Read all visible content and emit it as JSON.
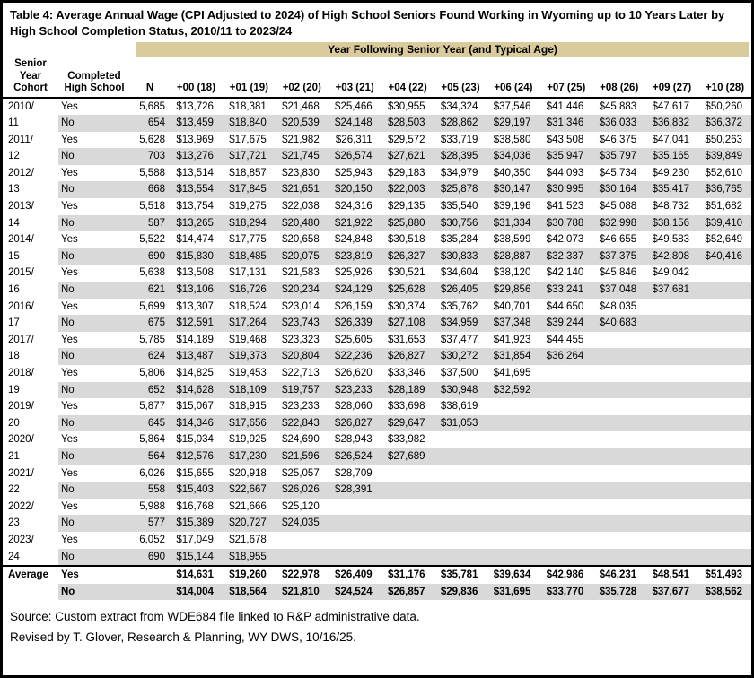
{
  "title": "Table 4: Average Annual Wage (CPI Adjusted to 2024) of High School Seniors Found Working in Wyoming up to 10 Years Later by High School Completion Status, 2010/11 to 2023/24",
  "span_header": "Year Following Senior Year (and Typical Age)",
  "columns": {
    "cohort": "Senior\nYear\nCohort",
    "completed": "Completed\nHigh School",
    "n": "N",
    "wage": [
      "+00 (18)",
      "+01 (19)",
      "+02 (20)",
      "+03 (21)",
      "+04 (22)",
      "+05 (23)",
      "+06 (24)",
      "+07 (25)",
      "+08 (26)",
      "+09 (27)",
      "+10 (28)"
    ]
  },
  "rows": [
    {
      "cohort": "2010/",
      "completed": "Yes",
      "n": "5,685",
      "wages": [
        "$13,726",
        "$18,381",
        "$21,468",
        "$25,466",
        "$30,955",
        "$34,324",
        "$37,546",
        "$41,446",
        "$45,883",
        "$47,617",
        "$50,260"
      ]
    },
    {
      "cohort": "11",
      "completed": "No",
      "n": "654",
      "wages": [
        "$13,459",
        "$18,840",
        "$20,539",
        "$24,148",
        "$28,503",
        "$28,862",
        "$29,197",
        "$31,346",
        "$36,033",
        "$36,832",
        "$36,372"
      ]
    },
    {
      "cohort": "2011/",
      "completed": "Yes",
      "n": "5,628",
      "wages": [
        "$13,969",
        "$17,675",
        "$21,982",
        "$26,311",
        "$29,572",
        "$33,719",
        "$38,580",
        "$43,508",
        "$46,375",
        "$47,041",
        "$50,263"
      ]
    },
    {
      "cohort": "12",
      "completed": "No",
      "n": "703",
      "wages": [
        "$13,276",
        "$17,721",
        "$21,745",
        "$26,574",
        "$27,621",
        "$28,395",
        "$34,036",
        "$35,947",
        "$35,797",
        "$35,165",
        "$39,849"
      ]
    },
    {
      "cohort": "2012/",
      "completed": "Yes",
      "n": "5,588",
      "wages": [
        "$13,514",
        "$18,857",
        "$23,830",
        "$25,943",
        "$29,183",
        "$34,979",
        "$40,350",
        "$44,093",
        "$45,734",
        "$49,230",
        "$52,610"
      ]
    },
    {
      "cohort": "13",
      "completed": "No",
      "n": "668",
      "wages": [
        "$13,554",
        "$17,845",
        "$21,651",
        "$20,150",
        "$22,003",
        "$25,878",
        "$30,147",
        "$30,995",
        "$30,164",
        "$35,417",
        "$36,765"
      ]
    },
    {
      "cohort": "2013/",
      "completed": "Yes",
      "n": "5,518",
      "wages": [
        "$13,754",
        "$19,275",
        "$22,038",
        "$24,316",
        "$29,135",
        "$35,540",
        "$39,196",
        "$41,523",
        "$45,088",
        "$48,732",
        "$51,682"
      ]
    },
    {
      "cohort": "14",
      "completed": "No",
      "n": "587",
      "wages": [
        "$13,265",
        "$18,294",
        "$20,480",
        "$21,922",
        "$25,880",
        "$30,756",
        "$31,334",
        "$30,788",
        "$32,998",
        "$38,156",
        "$39,410"
      ]
    },
    {
      "cohort": "2014/",
      "completed": "Yes",
      "n": "5,522",
      "wages": [
        "$14,474",
        "$17,775",
        "$20,658",
        "$24,848",
        "$30,518",
        "$35,284",
        "$38,599",
        "$42,073",
        "$46,655",
        "$49,583",
        "$52,649"
      ]
    },
    {
      "cohort": "15",
      "completed": "No",
      "n": "690",
      "wages": [
        "$15,830",
        "$18,485",
        "$20,075",
        "$23,819",
        "$26,327",
        "$30,833",
        "$28,887",
        "$32,337",
        "$37,375",
        "$42,808",
        "$40,416"
      ]
    },
    {
      "cohort": "2015/",
      "completed": "Yes",
      "n": "5,638",
      "wages": [
        "$13,508",
        "$17,131",
        "$21,583",
        "$25,926",
        "$30,521",
        "$34,604",
        "$38,120",
        "$42,140",
        "$45,846",
        "$49,042"
      ]
    },
    {
      "cohort": "16",
      "completed": "No",
      "n": "621",
      "wages": [
        "$13,106",
        "$16,726",
        "$20,234",
        "$24,129",
        "$25,628",
        "$26,405",
        "$29,856",
        "$33,241",
        "$37,048",
        "$37,681"
      ]
    },
    {
      "cohort": "2016/",
      "completed": "Yes",
      "n": "5,699",
      "wages": [
        "$13,307",
        "$18,524",
        "$23,014",
        "$26,159",
        "$30,374",
        "$35,762",
        "$40,701",
        "$44,650",
        "$48,035"
      ]
    },
    {
      "cohort": "17",
      "completed": "No",
      "n": "675",
      "wages": [
        "$12,591",
        "$17,264",
        "$23,743",
        "$26,339",
        "$27,108",
        "$34,959",
        "$37,348",
        "$39,244",
        "$40,683"
      ]
    },
    {
      "cohort": "2017/",
      "completed": "Yes",
      "n": "5,785",
      "wages": [
        "$14,189",
        "$19,468",
        "$23,323",
        "$25,605",
        "$31,653",
        "$37,477",
        "$41,923",
        "$44,455"
      ]
    },
    {
      "cohort": "18",
      "completed": "No",
      "n": "624",
      "wages": [
        "$13,487",
        "$19,373",
        "$20,804",
        "$22,236",
        "$26,827",
        "$30,272",
        "$31,854",
        "$36,264"
      ]
    },
    {
      "cohort": "2018/",
      "completed": "Yes",
      "n": "5,806",
      "wages": [
        "$14,825",
        "$19,453",
        "$22,713",
        "$26,620",
        "$33,346",
        "$37,500",
        "$41,695"
      ]
    },
    {
      "cohort": "19",
      "completed": "No",
      "n": "652",
      "wages": [
        "$14,628",
        "$18,109",
        "$19,757",
        "$23,233",
        "$28,189",
        "$30,948",
        "$32,592"
      ]
    },
    {
      "cohort": "2019/",
      "completed": "Yes",
      "n": "5,877",
      "wages": [
        "$15,067",
        "$18,915",
        "$23,233",
        "$28,060",
        "$33,698",
        "$38,619"
      ]
    },
    {
      "cohort": "20",
      "completed": "No",
      "n": "645",
      "wages": [
        "$14,346",
        "$17,656",
        "$22,843",
        "$26,827",
        "$29,647",
        "$31,053"
      ]
    },
    {
      "cohort": "2020/",
      "completed": "Yes",
      "n": "5,864",
      "wages": [
        "$15,034",
        "$19,925",
        "$24,690",
        "$28,943",
        "$33,982"
      ]
    },
    {
      "cohort": "21",
      "completed": "No",
      "n": "564",
      "wages": [
        "$12,576",
        "$17,230",
        "$21,596",
        "$26,524",
        "$27,689"
      ]
    },
    {
      "cohort": "2021/",
      "completed": "Yes",
      "n": "6,026",
      "wages": [
        "$15,655",
        "$20,918",
        "$25,057",
        "$28,709"
      ]
    },
    {
      "cohort": "22",
      "completed": "No",
      "n": "558",
      "wages": [
        "$15,403",
        "$22,667",
        "$26,026",
        "$28,391"
      ]
    },
    {
      "cohort": "2022/",
      "completed": "Yes",
      "n": "5,988",
      "wages": [
        "$16,768",
        "$21,666",
        "$25,120"
      ]
    },
    {
      "cohort": "23",
      "completed": "No",
      "n": "577",
      "wages": [
        "$15,389",
        "$20,727",
        "$24,035"
      ]
    },
    {
      "cohort": "2023/",
      "completed": "Yes",
      "n": "6,052",
      "wages": [
        "$17,049",
        "$21,678"
      ]
    },
    {
      "cohort": "24",
      "completed": "No",
      "n": "690",
      "wages": [
        "$15,144",
        "$18,955"
      ]
    }
  ],
  "average_rows": [
    {
      "cohort": "Average",
      "completed": "Yes",
      "n": "",
      "wages": [
        "$14,631",
        "$19,260",
        "$22,978",
        "$26,409",
        "$31,176",
        "$35,781",
        "$39,634",
        "$42,986",
        "$46,231",
        "$48,541",
        "$51,493"
      ]
    },
    {
      "cohort": "",
      "completed": "No",
      "n": "",
      "wages": [
        "$14,004",
        "$18,564",
        "$21,810",
        "$24,524",
        "$26,857",
        "$29,836",
        "$31,695",
        "$33,770",
        "$35,728",
        "$37,677",
        "$38,562"
      ]
    }
  ],
  "footer": {
    "source": "Source: Custom extract from WDE684 file linked to R&P administrative data.",
    "revised": "Revised by T. Glover, Research & Planning, WY DWS, 10/16/25."
  },
  "colors": {
    "header_band": "#d9cb9c",
    "row_shade": "#d9d9d9",
    "border": "#000000",
    "text": "#000000"
  }
}
